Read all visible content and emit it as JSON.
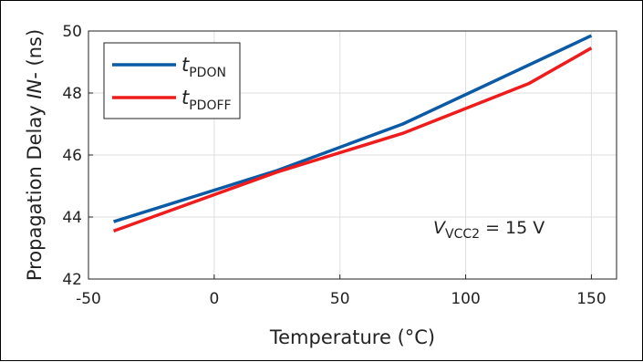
{
  "chart_data": {
    "type": "line",
    "xlabel": "Temperature (°C)",
    "ylabel_parts": {
      "pre": "Propagation Delay ",
      "italic": "IN-",
      "post": " (ns)"
    },
    "xlim": [
      -50,
      160
    ],
    "ylim": [
      42,
      50
    ],
    "xticks": [
      -50,
      0,
      50,
      100,
      150
    ],
    "yticks": [
      42,
      44,
      46,
      48,
      50
    ],
    "grid": true,
    "legend_position": "top-left",
    "series": [
      {
        "name": "t_PDON",
        "label_main": "t",
        "label_sub": "PDON",
        "color": "#0b5aa6",
        "x": [
          -40,
          25,
          75,
          150
        ],
        "y": [
          43.85,
          45.5,
          47.0,
          49.85
        ]
      },
      {
        "name": "t_PDOFF",
        "label_main": "t",
        "label_sub": "PDOFF",
        "color": "#ee1c1c",
        "x": [
          -40,
          25,
          75,
          125,
          150
        ],
        "y": [
          43.55,
          45.45,
          46.7,
          48.3,
          49.45
        ]
      }
    ],
    "annotation": {
      "main": "V",
      "sub": "VCC2",
      "rest": " = 15 V",
      "x": 100,
      "y": 43.5
    }
  }
}
